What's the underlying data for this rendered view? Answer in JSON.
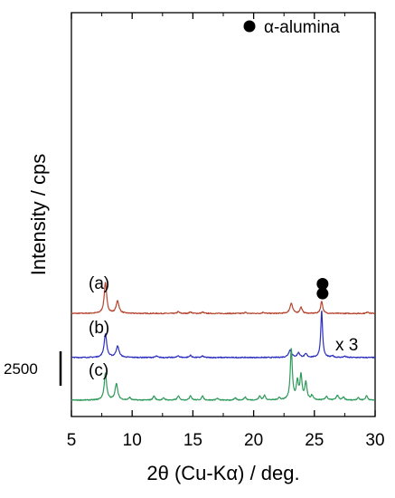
{
  "chart_data": {
    "type": "line",
    "xlabel": "2θ (Cu-Kα) / deg.",
    "ylabel": "Intensity / cps",
    "xlim": [
      5,
      30
    ],
    "xticks": [
      5,
      10,
      15,
      20,
      25,
      30
    ],
    "grid": false,
    "legend": {
      "marker": "filled-circle",
      "label": "α-alumina",
      "placement": "top-right"
    },
    "scale_bar": {
      "label": "2500",
      "value": 2500
    },
    "series": [
      {
        "name": "(a)",
        "color": "#b5452f",
        "baseline": 6500,
        "multiplier_label": "",
        "alumina_marker_x": 25.6,
        "peaks": [
          [
            7.8,
            2250,
            0.12
          ],
          [
            8.8,
            900,
            0.14
          ],
          [
            13.8,
            130,
            0.1
          ],
          [
            14.8,
            120,
            0.1
          ],
          [
            15.8,
            100,
            0.1
          ],
          [
            19.3,
            80,
            0.1
          ],
          [
            20.8,
            90,
            0.1
          ],
          [
            23.1,
            750,
            0.13
          ],
          [
            23.9,
            450,
            0.11
          ],
          [
            25.6,
            900,
            0.1
          ],
          [
            29.4,
            120,
            0.1
          ]
        ]
      },
      {
        "name": "(b)",
        "color": "#2c2fbf",
        "baseline": 3300,
        "multiplier_label": "x 3",
        "alumina_marker_x": 25.6,
        "peaks": [
          [
            7.8,
            1700,
            0.13
          ],
          [
            8.8,
            800,
            0.15
          ],
          [
            12.0,
            100,
            0.1
          ],
          [
            13.8,
            130,
            0.1
          ],
          [
            14.8,
            160,
            0.1
          ],
          [
            15.8,
            100,
            0.1
          ],
          [
            23.0,
            530,
            0.15
          ],
          [
            23.7,
            330,
            0.12
          ],
          [
            24.3,
            250,
            0.12
          ],
          [
            25.6,
            3400,
            0.09
          ],
          [
            26.5,
            120,
            0.1
          ],
          [
            27.5,
            90,
            0.1
          ]
        ]
      },
      {
        "name": "(c)",
        "color": "#2e9a5a",
        "baseline": 200,
        "multiplier_label": "",
        "alumina_marker_x": null,
        "peaks": [
          [
            7.8,
            1950,
            0.12
          ],
          [
            8.7,
            1180,
            0.13
          ],
          [
            9.8,
            180,
            0.1
          ],
          [
            11.8,
            300,
            0.1
          ],
          [
            12.6,
            150,
            0.1
          ],
          [
            13.8,
            300,
            0.1
          ],
          [
            14.8,
            340,
            0.1
          ],
          [
            15.8,
            290,
            0.1
          ],
          [
            17.0,
            130,
            0.1
          ],
          [
            18.5,
            150,
            0.1
          ],
          [
            19.3,
            220,
            0.1
          ],
          [
            20.5,
            280,
            0.1
          ],
          [
            20.9,
            330,
            0.1
          ],
          [
            22.1,
            170,
            0.1
          ],
          [
            23.1,
            3700,
            0.1
          ],
          [
            23.6,
            1300,
            0.1
          ],
          [
            23.9,
            1750,
            0.1
          ],
          [
            24.3,
            1250,
            0.1
          ],
          [
            24.8,
            320,
            0.1
          ],
          [
            26.0,
            280,
            0.1
          ],
          [
            26.9,
            330,
            0.12
          ],
          [
            27.4,
            200,
            0.1
          ],
          [
            28.6,
            180,
            0.1
          ],
          [
            29.3,
            320,
            0.1
          ]
        ]
      }
    ]
  }
}
